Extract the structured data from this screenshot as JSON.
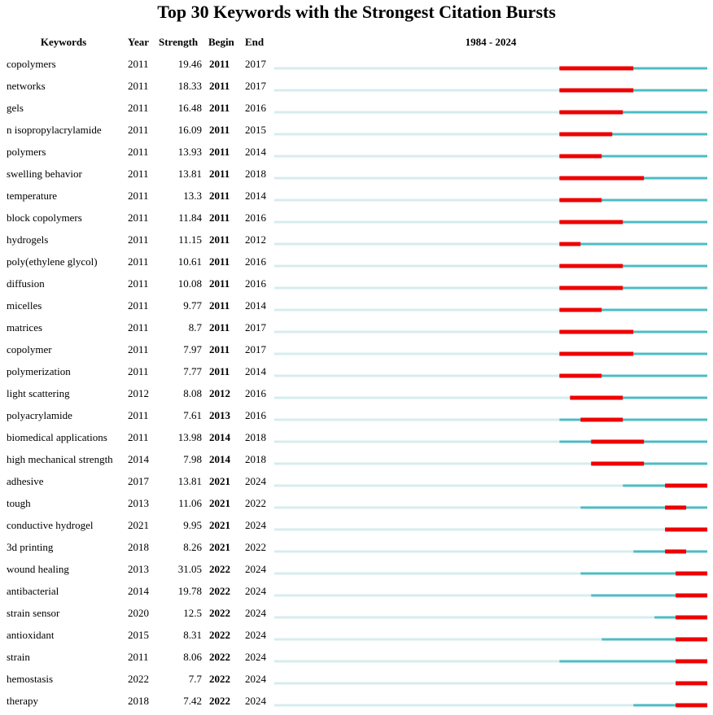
{
  "title": "Top 30 Keywords with the Strongest Citation Bursts",
  "headers": {
    "keywords": "Keywords",
    "year": "Year",
    "strength": "Strength",
    "begin": "Begin",
    "end": "End",
    "range": "1984 - 2024"
  },
  "colors": {
    "before_start": "#d7ecee",
    "active": "#4cbcc4",
    "burst": "#ee0000"
  },
  "chart_data": {
    "type": "table",
    "timeline_start": 1984,
    "timeline_end": 2024,
    "rows": [
      {
        "keyword": "copolymers",
        "year": 2011,
        "strength": "19.46",
        "begin": 2011,
        "end": 2017
      },
      {
        "keyword": "networks",
        "year": 2011,
        "strength": "18.33",
        "begin": 2011,
        "end": 2017
      },
      {
        "keyword": "gels",
        "year": 2011,
        "strength": "16.48",
        "begin": 2011,
        "end": 2016
      },
      {
        "keyword": "n isopropylacrylamide",
        "year": 2011,
        "strength": "16.09",
        "begin": 2011,
        "end": 2015
      },
      {
        "keyword": "polymers",
        "year": 2011,
        "strength": "13.93",
        "begin": 2011,
        "end": 2014
      },
      {
        "keyword": "swelling behavior",
        "year": 2011,
        "strength": "13.81",
        "begin": 2011,
        "end": 2018
      },
      {
        "keyword": "temperature",
        "year": 2011,
        "strength": "13.3",
        "begin": 2011,
        "end": 2014
      },
      {
        "keyword": "block copolymers",
        "year": 2011,
        "strength": "11.84",
        "begin": 2011,
        "end": 2016
      },
      {
        "keyword": "hydrogels",
        "year": 2011,
        "strength": "11.15",
        "begin": 2011,
        "end": 2012
      },
      {
        "keyword": "poly(ethylene glycol)",
        "year": 2011,
        "strength": "10.61",
        "begin": 2011,
        "end": 2016
      },
      {
        "keyword": "diffusion",
        "year": 2011,
        "strength": "10.08",
        "begin": 2011,
        "end": 2016
      },
      {
        "keyword": "micelles",
        "year": 2011,
        "strength": "9.77",
        "begin": 2011,
        "end": 2014
      },
      {
        "keyword": "matrices",
        "year": 2011,
        "strength": "8.7",
        "begin": 2011,
        "end": 2017
      },
      {
        "keyword": "copolymer",
        "year": 2011,
        "strength": "7.97",
        "begin": 2011,
        "end": 2017
      },
      {
        "keyword": "polymerization",
        "year": 2011,
        "strength": "7.77",
        "begin": 2011,
        "end": 2014
      },
      {
        "keyword": "light scattering",
        "year": 2012,
        "strength": "8.08",
        "begin": 2012,
        "end": 2016
      },
      {
        "keyword": "polyacrylamide",
        "year": 2011,
        "strength": "7.61",
        "begin": 2013,
        "end": 2016
      },
      {
        "keyword": "biomedical applications",
        "year": 2011,
        "strength": "13.98",
        "begin": 2014,
        "end": 2018
      },
      {
        "keyword": "high mechanical strength",
        "year": 2014,
        "strength": "7.98",
        "begin": 2014,
        "end": 2018
      },
      {
        "keyword": "adhesive",
        "year": 2017,
        "strength": "13.81",
        "begin": 2021,
        "end": 2024
      },
      {
        "keyword": "tough",
        "year": 2013,
        "strength": "11.06",
        "begin": 2021,
        "end": 2022
      },
      {
        "keyword": "conductive hydrogel",
        "year": 2021,
        "strength": "9.95",
        "begin": 2021,
        "end": 2024
      },
      {
        "keyword": "3d printing",
        "year": 2018,
        "strength": "8.26",
        "begin": 2021,
        "end": 2022
      },
      {
        "keyword": "wound healing",
        "year": 2013,
        "strength": "31.05",
        "begin": 2022,
        "end": 2024
      },
      {
        "keyword": "antibacterial",
        "year": 2014,
        "strength": "19.78",
        "begin": 2022,
        "end": 2024
      },
      {
        "keyword": "strain sensor",
        "year": 2020,
        "strength": "12.5",
        "begin": 2022,
        "end": 2024
      },
      {
        "keyword": "antioxidant",
        "year": 2015,
        "strength": "8.31",
        "begin": 2022,
        "end": 2024
      },
      {
        "keyword": "strain",
        "year": 2011,
        "strength": "8.06",
        "begin": 2022,
        "end": 2024
      },
      {
        "keyword": "hemostasis",
        "year": 2022,
        "strength": "7.7",
        "begin": 2022,
        "end": 2024
      },
      {
        "keyword": "therapy",
        "year": 2018,
        "strength": "7.42",
        "begin": 2022,
        "end": 2024
      }
    ]
  }
}
